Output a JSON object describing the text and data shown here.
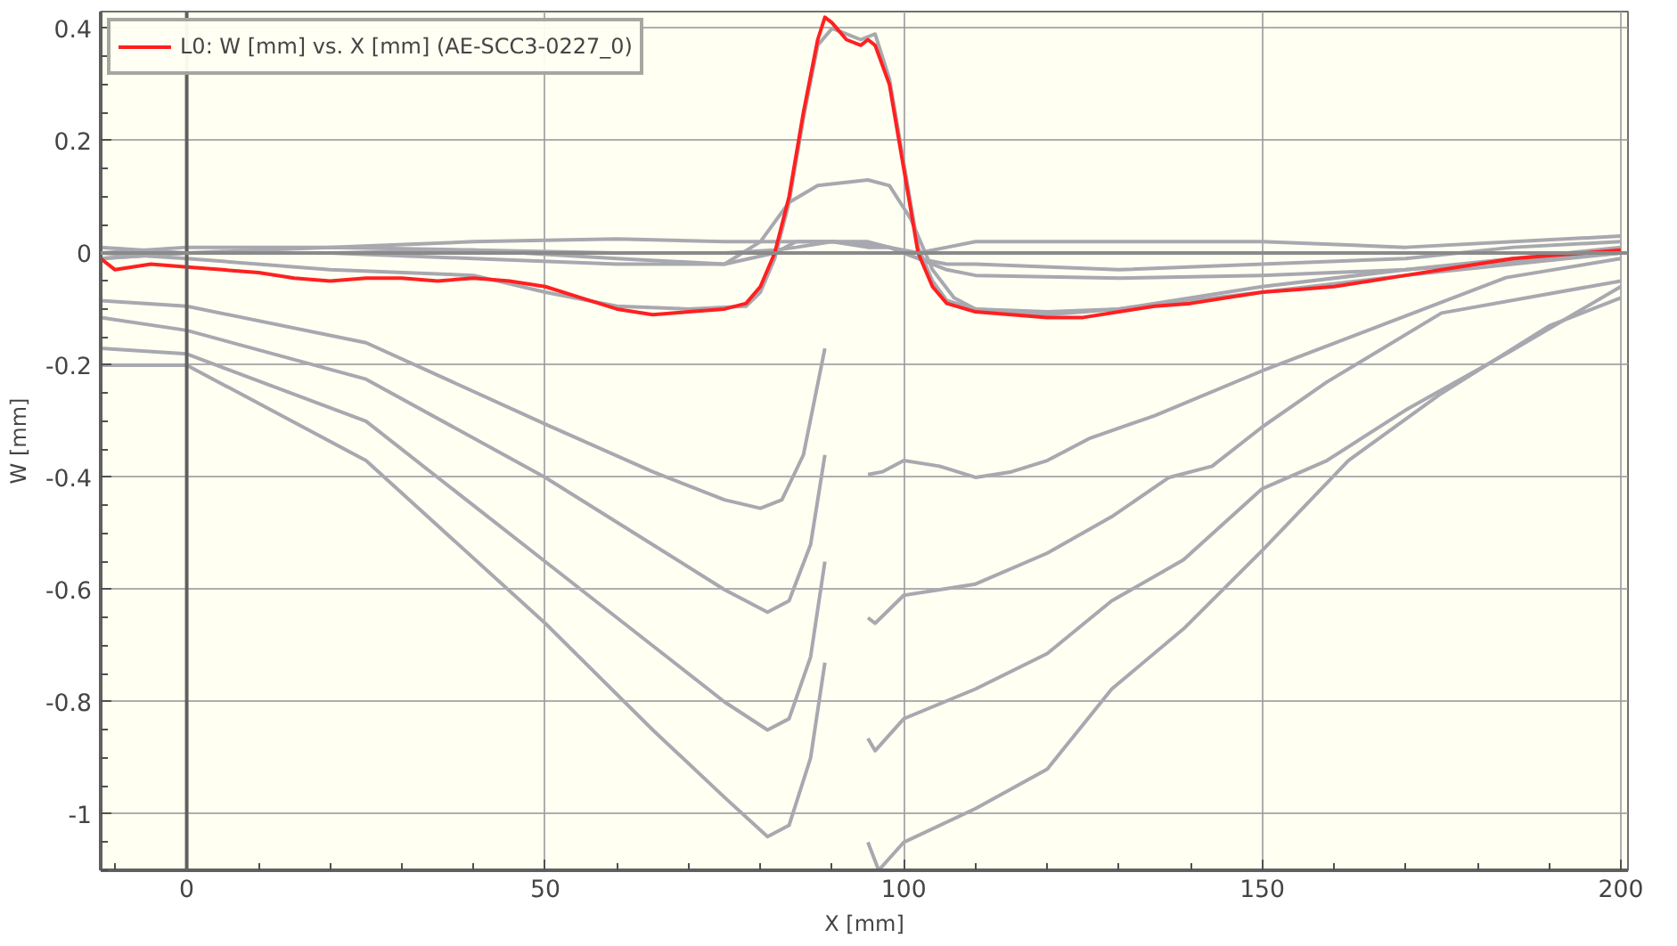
{
  "chart_data": {
    "type": "line",
    "xlabel": "X [mm]",
    "ylabel": "W [mm]",
    "xlim": [
      -12,
      201
    ],
    "ylim": [
      -1.1,
      0.43
    ],
    "xticks": [
      0,
      50,
      100,
      150,
      200
    ],
    "yticks": [
      0.4,
      0.2,
      0,
      -0.2,
      -0.4,
      -0.6,
      -0.8,
      -1
    ],
    "grid": true,
    "legend": "top left",
    "marker": "none",
    "line_style": "solid",
    "ref_lines": [
      {
        "axis": "x",
        "value": 0,
        "color": "#606060"
      },
      {
        "axis": "y",
        "value": 0,
        "color": "#8a8a8a"
      }
    ],
    "series": [
      {
        "color": "#a8a8b0",
        "x": [
          -12,
          0,
          20,
          40,
          60,
          75,
          82,
          85,
          90,
          95,
          98,
          102,
          106,
          110,
          130,
          150,
          170,
          185,
          200
        ],
        "values": [
          0,
          0.01,
          0.01,
          0.02,
          0.025,
          0.02,
          0.02,
          0.02,
          0.02,
          0.015,
          0.01,
          0.0,
          0.01,
          0.02,
          0.02,
          0.02,
          0.01,
          0.02,
          0.03
        ]
      },
      {
        "color": "#a8a8b0",
        "x": [
          -12,
          0,
          20,
          40,
          60,
          75,
          82,
          85,
          90,
          95,
          98,
          102,
          106,
          110,
          130,
          150,
          170,
          185,
          200
        ],
        "values": [
          -0.01,
          0,
          0.01,
          0.005,
          -0.01,
          -0.02,
          0,
          0.02,
          0.02,
          0.02,
          0.01,
          -0.01,
          -0.02,
          -0.02,
          -0.03,
          -0.02,
          -0.01,
          0.01,
          0.02
        ]
      },
      {
        "color": "#a8a8b0",
        "x": [
          -12,
          0,
          20,
          40,
          60,
          75,
          82,
          85,
          90,
          95,
          98,
          102,
          106,
          110,
          130,
          150,
          170,
          185,
          200
        ],
        "values": [
          0.01,
          0,
          0,
          0.005,
          0,
          0,
          0.005,
          0.01,
          0.02,
          0.01,
          0.01,
          -0.01,
          -0.03,
          -0.04,
          -0.045,
          -0.04,
          -0.03,
          -0.01,
          0.01
        ]
      },
      {
        "color": "#a8a8b0",
        "x": [
          -12,
          0,
          20,
          40,
          60,
          75,
          80,
          84,
          88,
          95,
          98,
          101,
          104,
          107,
          110,
          120,
          130,
          150,
          170,
          200
        ],
        "values": [
          -0.01,
          0,
          0,
          -0.01,
          -0.02,
          -0.02,
          0.02,
          0.09,
          0.12,
          0.13,
          0.12,
          0.06,
          -0.03,
          -0.08,
          -0.1,
          -0.11,
          -0.1,
          -0.06,
          -0.03,
          0.0
        ]
      },
      {
        "color": "#a8a8b0",
        "x": [
          -12,
          0,
          20,
          40,
          50,
          60,
          70,
          78,
          80,
          82,
          84,
          86,
          88,
          90,
          92,
          94,
          96,
          98,
          100,
          102,
          104,
          106,
          110,
          120,
          130,
          150,
          170,
          200
        ],
        "values": [
          0,
          -0.01,
          -0.03,
          -0.04,
          -0.07,
          -0.095,
          -0.1,
          -0.095,
          -0.07,
          -0.01,
          0.09,
          0.24,
          0.37,
          0.4,
          0.39,
          0.38,
          0.39,
          0.31,
          0.16,
          0.01,
          -0.05,
          -0.085,
          -0.1,
          -0.105,
          -0.1,
          -0.07,
          -0.04,
          0.0
        ]
      },
      {
        "color": "#a8a8b0",
        "x": [
          -12,
          0,
          25,
          50,
          65,
          75,
          80,
          83,
          86,
          89
        ],
        "values": [
          -0.085,
          -0.095,
          -0.16,
          -0.305,
          -0.39,
          -0.44,
          -0.455,
          -0.44,
          -0.36,
          -0.17
        ]
      },
      {
        "color": "#a8a8b0",
        "x": [
          -12,
          0,
          25,
          50,
          65,
          75,
          81,
          84,
          87,
          89
        ],
        "values": [
          -0.115,
          -0.138,
          -0.225,
          -0.4,
          -0.52,
          -0.6,
          -0.64,
          -0.62,
          -0.52,
          -0.36
        ]
      },
      {
        "color": "#a8a8b0",
        "x": [
          -12,
          0,
          25,
          50,
          65,
          75,
          81,
          84,
          87,
          89
        ],
        "values": [
          -0.17,
          -0.18,
          -0.3,
          -0.55,
          -0.7,
          -0.8,
          -0.85,
          -0.83,
          -0.72,
          -0.55
        ]
      },
      {
        "color": "#a8a8b0",
        "x": [
          -12,
          0,
          25,
          50,
          65,
          75,
          81,
          84,
          87,
          89
        ],
        "values": [
          -0.2,
          -0.2,
          -0.37,
          -0.66,
          -0.85,
          -0.97,
          -1.04,
          -1.02,
          -0.9,
          -0.73
        ]
      },
      {
        "color": "#a8a8b0",
        "x": [
          95,
          97,
          100,
          105,
          110,
          115,
          120,
          126,
          135,
          150,
          167,
          184,
          200
        ],
        "values": [
          -0.395,
          -0.39,
          -0.37,
          -0.38,
          -0.4,
          -0.39,
          -0.37,
          -0.33,
          -0.29,
          -0.21,
          -0.127,
          -0.044,
          -0.01
        ]
      },
      {
        "color": "#a8a8b0",
        "x": [
          95,
          96,
          100,
          110,
          120,
          129,
          137,
          143,
          150,
          159,
          175,
          200
        ],
        "values": [
          -0.65,
          -0.66,
          -0.61,
          -0.59,
          -0.535,
          -0.47,
          -0.4,
          -0.38,
          -0.31,
          -0.23,
          -0.107,
          -0.05
        ]
      },
      {
        "color": "#a8a8b0",
        "x": [
          95,
          96,
          100,
          110,
          120,
          129,
          139,
          150,
          159,
          170,
          184,
          200
        ],
        "values": [
          -0.865,
          -0.887,
          -0.83,
          -0.777,
          -0.714,
          -0.62,
          -0.547,
          -0.42,
          -0.37,
          -0.28,
          -0.18,
          -0.06
        ]
      },
      {
        "color": "#a8a8b0",
        "x": [
          95,
          96.5,
          100,
          110,
          120,
          129,
          139,
          150,
          162,
          175,
          190,
          200
        ],
        "values": [
          -1.05,
          -1.1,
          -1.05,
          -0.99,
          -0.92,
          -0.777,
          -0.67,
          -0.53,
          -0.37,
          -0.25,
          -0.13,
          -0.08
        ]
      },
      {
        "name": "L0: W [mm] vs. X [mm] (AE-SCC3-0227_0)",
        "color": "#ff2020",
        "x": [
          -12,
          -10,
          -5,
          0,
          5,
          10,
          15,
          20,
          25,
          30,
          35,
          40,
          45,
          50,
          55,
          60,
          65,
          70,
          75,
          78,
          80,
          82,
          84,
          86,
          88,
          89,
          90,
          92,
          94,
          95,
          96,
          98,
          100,
          102,
          104,
          106,
          110,
          115,
          120,
          125,
          130,
          135,
          140,
          145,
          150,
          155,
          160,
          165,
          170,
          175,
          180,
          185,
          190,
          195,
          200
        ],
        "values": [
          -0.01,
          -0.03,
          -0.02,
          -0.025,
          -0.03,
          -0.035,
          -0.045,
          -0.05,
          -0.045,
          -0.045,
          -0.05,
          -0.045,
          -0.05,
          -0.06,
          -0.08,
          -0.1,
          -0.11,
          -0.105,
          -0.1,
          -0.09,
          -0.06,
          0.0,
          0.1,
          0.25,
          0.38,
          0.42,
          0.41,
          0.38,
          0.37,
          0.38,
          0.37,
          0.3,
          0.15,
          0.0,
          -0.06,
          -0.09,
          -0.105,
          -0.11,
          -0.115,
          -0.115,
          -0.105,
          -0.095,
          -0.09,
          -0.08,
          -0.07,
          -0.065,
          -0.06,
          -0.05,
          -0.04,
          -0.03,
          -0.02,
          -0.01,
          -0.005,
          0.0,
          0.005
        ]
      }
    ]
  }
}
